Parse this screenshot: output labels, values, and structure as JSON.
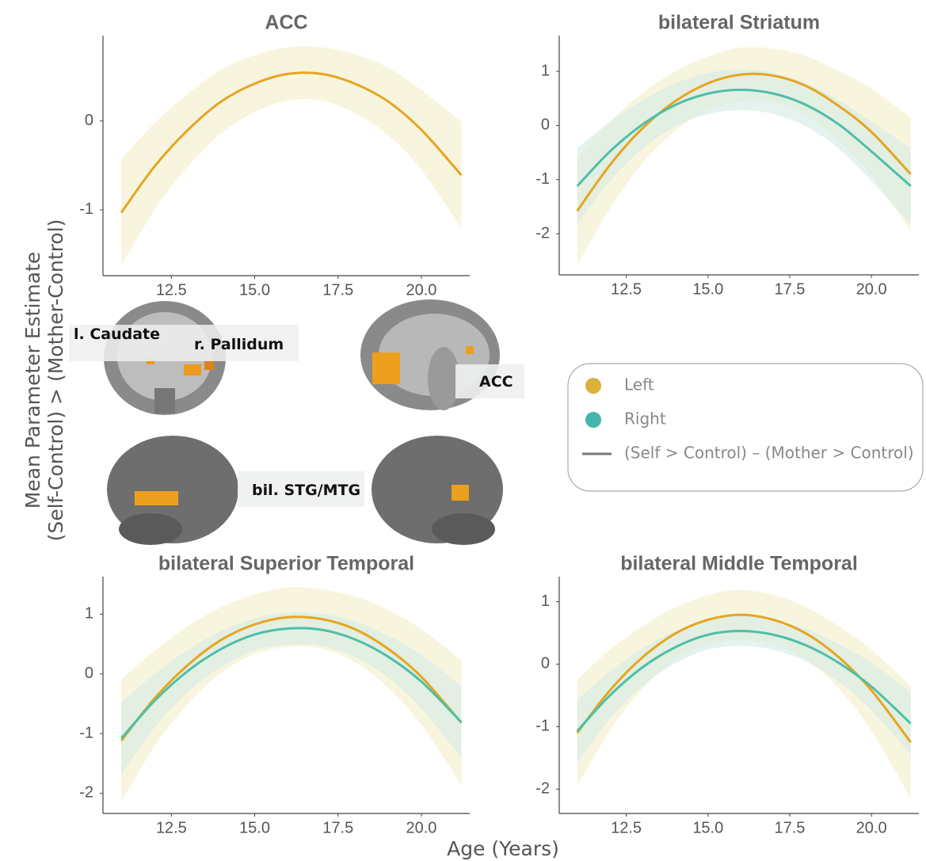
{
  "y_label": [
    "Mean Parameter Estimate",
    "(Self-Control) > (Mother-Control)"
  ],
  "x_label": "Age (Years)",
  "brain_labels": [
    "l. Caudate",
    "r. Pallidum",
    "ACC",
    "bil. STG/MTG"
  ],
  "legend": {
    "items": [
      {
        "label": "Left",
        "color": "#d9b13b",
        "marker": "circle"
      },
      {
        "label": "Right",
        "color": "#45b5aa",
        "marker": "circle"
      },
      {
        "label": "(Self > Control) – (Mother > Control)",
        "color": "#777777",
        "marker": "line"
      }
    ]
  },
  "chart_data": [
    {
      "type": "line",
      "title": "ACC",
      "x": [
        11,
        12,
        13,
        14,
        15,
        16,
        17,
        18,
        19,
        20,
        21.2
      ],
      "xlim": [
        10.45,
        21.45
      ],
      "xticks": [
        12.5,
        {
          "value": 15,
          "label": "15.0"
        },
        17.5,
        {
          "value": 20,
          "label": "20.0"
        }
      ],
      "ylim": [
        -1.74,
        0.96
      ],
      "yticks": [
        -1,
        0
      ],
      "series": [
        {
          "color": "#e6a520",
          "band_color": "#f3edc4",
          "values": [
            -1.03,
            -0.51,
            -0.1,
            0.22,
            0.42,
            0.53,
            0.53,
            0.42,
            0.22,
            -0.1,
            -0.61
          ],
          "lower": [
            -1.63,
            -1.0,
            -0.51,
            -0.14,
            0.1,
            0.23,
            0.23,
            0.09,
            -0.16,
            -0.55,
            -1.21
          ],
          "upper": [
            -0.43,
            -0.02,
            0.31,
            0.58,
            0.74,
            0.83,
            0.83,
            0.75,
            0.6,
            0.35,
            -0.01
          ]
        }
      ]
    },
    {
      "type": "line",
      "title": "bilateral Striatum",
      "x": [
        11,
        12,
        13,
        14,
        15,
        16,
        17,
        18,
        19,
        20,
        21.2
      ],
      "xlim": [
        10.45,
        21.45
      ],
      "xticks": [
        12.5,
        {
          "value": 15,
          "label": "15.0"
        },
        17.5,
        {
          "value": 20,
          "label": "20.0"
        }
      ],
      "ylim": [
        -2.76,
        1.66
      ],
      "yticks": [
        -2,
        -1,
        0,
        1
      ],
      "series": [
        {
          "color": "#e6a520",
          "band_color": "#f3edc4",
          "values": [
            -1.58,
            -0.73,
            -0.05,
            0.45,
            0.78,
            0.94,
            0.92,
            0.73,
            0.36,
            -0.12,
            -0.9
          ],
          "lower": [
            -2.58,
            -1.53,
            -0.7,
            -0.1,
            0.28,
            0.44,
            0.42,
            0.18,
            -0.29,
            -0.92,
            -1.95
          ],
          "upper": [
            -0.58,
            0.07,
            0.6,
            1.0,
            1.28,
            1.44,
            1.42,
            1.28,
            1.01,
            0.68,
            0.15
          ]
        },
        {
          "color": "#4dbfa8",
          "band_color": "#cfeae4",
          "values": [
            -1.12,
            -0.48,
            0.02,
            0.38,
            0.59,
            0.66,
            0.59,
            0.38,
            0.02,
            -0.48,
            -1.12
          ],
          "lower": [
            -1.82,
            -1.03,
            -0.43,
            -0.02,
            0.21,
            0.28,
            0.21,
            -0.02,
            -0.43,
            -1.03,
            -1.82
          ],
          "upper": [
            -0.42,
            0.07,
            0.47,
            0.78,
            0.97,
            1.04,
            0.97,
            0.78,
            0.47,
            0.07,
            -0.42
          ]
        }
      ]
    },
    {
      "type": "line",
      "title": "bilateral Superior Temporal",
      "x": [
        11,
        12,
        13,
        14,
        15,
        16,
        17,
        18,
        19,
        20,
        21.2
      ],
      "xlim": [
        10.45,
        21.45
      ],
      "xticks": [
        12.5,
        {
          "value": 15,
          "label": "15.0"
        },
        17.5,
        {
          "value": 20,
          "label": "20.0"
        }
      ],
      "ylim": [
        -2.34,
        1.63
      ],
      "yticks": [
        -2,
        -1,
        0,
        1
      ],
      "series": [
        {
          "color": "#e6a520",
          "band_color": "#f3edc4",
          "values": [
            -1.12,
            -0.41,
            0.15,
            0.57,
            0.83,
            0.95,
            0.92,
            0.75,
            0.42,
            -0.05,
            -0.82
          ],
          "lower": [
            -2.15,
            -1.21,
            -0.5,
            0.02,
            0.33,
            0.45,
            0.42,
            0.2,
            -0.23,
            -0.85,
            -1.87
          ],
          "upper": [
            -0.09,
            0.39,
            0.8,
            1.12,
            1.33,
            1.45,
            1.42,
            1.3,
            1.07,
            0.75,
            0.23
          ]
        },
        {
          "color": "#4dbfa8",
          "band_color": "#cfeae4",
          "values": [
            -1.08,
            -0.45,
            0.05,
            0.42,
            0.66,
            0.76,
            0.74,
            0.58,
            0.29,
            -0.13,
            -0.81
          ],
          "lower": [
            -1.68,
            -0.9,
            -0.3,
            0.12,
            0.39,
            0.49,
            0.47,
            0.28,
            -0.06,
            -0.58,
            -1.41
          ],
          "upper": [
            -0.48,
            0.0,
            0.4,
            0.72,
            0.93,
            1.03,
            1.01,
            0.88,
            0.64,
            0.32,
            -0.21
          ]
        }
      ]
    },
    {
      "type": "line",
      "title": "bilateral Middle Temporal",
      "x": [
        11,
        12,
        13,
        14,
        15,
        16,
        17,
        18,
        19,
        20,
        21.2
      ],
      "xlim": [
        10.45,
        21.45
      ],
      "xticks": [
        12.5,
        {
          "value": 15,
          "label": "15.0"
        },
        17.5,
        {
          "value": 20,
          "label": "20.0"
        }
      ],
      "ylim": [
        -2.39,
        1.4
      ],
      "yticks": [
        -2,
        -1,
        0,
        1
      ],
      "series": [
        {
          "color": "#e6a520",
          "band_color": "#f3edc4",
          "values": [
            -1.1,
            -0.42,
            0.11,
            0.49,
            0.71,
            0.79,
            0.71,
            0.49,
            0.11,
            -0.42,
            -1.25
          ],
          "lower": [
            -1.95,
            -1.07,
            -0.39,
            0.07,
            0.31,
            0.39,
            0.31,
            0.07,
            -0.39,
            -1.07,
            -2.15
          ],
          "upper": [
            -0.25,
            0.23,
            0.61,
            0.91,
            1.11,
            1.19,
            1.11,
            0.91,
            0.61,
            0.23,
            -0.35
          ]
        },
        {
          "color": "#4dbfa8",
          "band_color": "#cfeae4",
          "values": [
            -1.07,
            -0.5,
            -0.05,
            0.27,
            0.47,
            0.53,
            0.47,
            0.3,
            0.02,
            -0.36,
            -0.95
          ],
          "lower": [
            -1.57,
            -0.88,
            -0.35,
            0.01,
            0.23,
            0.29,
            0.23,
            0.04,
            -0.28,
            -0.74,
            -1.45
          ],
          "upper": [
            -0.57,
            -0.12,
            0.25,
            0.53,
            0.71,
            0.77,
            0.71,
            0.56,
            0.32,
            0.02,
            -0.45
          ]
        }
      ]
    }
  ]
}
